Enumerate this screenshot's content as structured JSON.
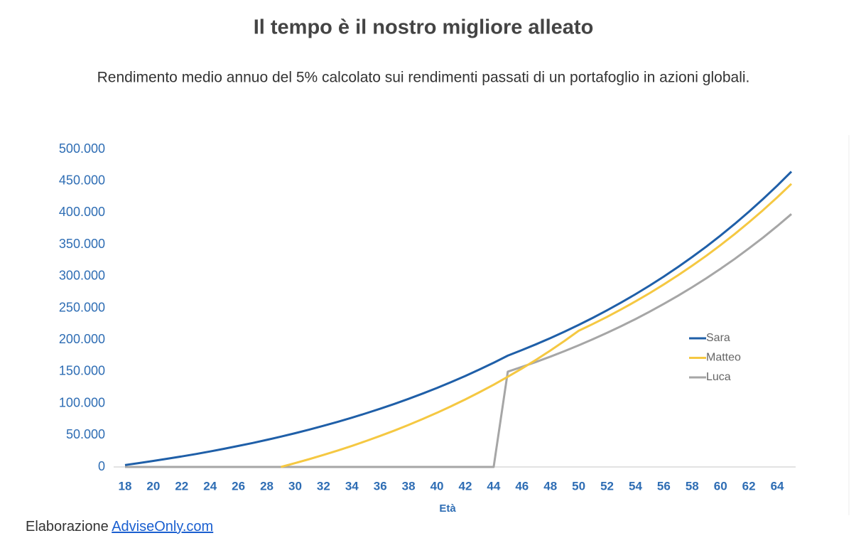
{
  "chart_data": {
    "type": "line",
    "title": "Il tempo è il nostro migliore alleato",
    "subtitle": "Rendimento medio annuo del 5% calcolato sui rendimenti passati di un portafoglio in azioni globali.",
    "x_label": "Età",
    "x": [
      18,
      19,
      20,
      21,
      22,
      23,
      24,
      25,
      26,
      27,
      28,
      29,
      30,
      31,
      32,
      33,
      34,
      35,
      36,
      37,
      38,
      39,
      40,
      41,
      42,
      43,
      44,
      45,
      46,
      47,
      48,
      49,
      50,
      51,
      52,
      53,
      54,
      55,
      56,
      57,
      58,
      59,
      60,
      61,
      62,
      63,
      64,
      65
    ],
    "xlim": [
      17.2,
      65.3
    ],
    "xticks": [
      18,
      20,
      22,
      24,
      26,
      28,
      30,
      32,
      34,
      36,
      38,
      40,
      42,
      44,
      46,
      48,
      50,
      52,
      54,
      56,
      58,
      60,
      62,
      64
    ],
    "ylim": [
      0,
      500000
    ],
    "yticks": [
      0,
      {
        "value": 50000,
        "label": "50.000"
      },
      {
        "value": 100000,
        "label": "100.000"
      },
      {
        "value": 150000,
        "label": "150.000"
      },
      {
        "value": 200000,
        "label": "200.000"
      },
      {
        "value": 250000,
        "label": "250.000"
      },
      {
        "value": 300000,
        "label": "300.000"
      },
      {
        "value": 350000,
        "label": "350.000"
      },
      {
        "value": 400000,
        "label": "400.000"
      },
      {
        "value": 450000,
        "label": "450.000"
      },
      {
        "value": 500000,
        "label": "500.000"
      }
    ],
    "legend": "right",
    "series": [
      {
        "name": "Sara",
        "color": "#1f5fa8",
        "values": [
          3000,
          6150,
          9458,
          12930,
          16577,
          20406,
          24426,
          28647,
          33080,
          37734,
          42620,
          47751,
          53139,
          58796,
          64736,
          70973,
          77521,
          84397,
          91617,
          99198,
          107158,
          115516,
          124292,
          133506,
          143181,
          153341,
          164007,
          175208,
          183968,
          193167,
          202825,
          212966,
          223614,
          234795,
          246535,
          258862,
          271805,
          285395,
          299665,
          314648,
          330380,
          346899,
          364244,
          382456,
          401579,
          421658,
          442741,
          464878
        ]
      },
      {
        "name": "Matteo",
        "color": "#f5c842",
        "values": [
          null,
          null,
          null,
          null,
          null,
          null,
          null,
          null,
          null,
          null,
          null,
          0,
          6000,
          12300,
          18915,
          25861,
          33154,
          40811,
          48852,
          57295,
          66160,
          75467,
          85241,
          95503,
          106278,
          117592,
          129472,
          141945,
          155042,
          168794,
          183234,
          198396,
          214316,
          225032,
          236284,
          248098,
          260503,
          273528,
          287204,
          301564,
          316642,
          332474,
          349098,
          366553,
          384881,
          404125,
          424331,
          445548
        ]
      },
      {
        "name": "Luca",
        "color": "#a6a6a6",
        "values": [
          0,
          0,
          0,
          0,
          0,
          0,
          0,
          0,
          0,
          0,
          0,
          0,
          0,
          0,
          0,
          0,
          0,
          0,
          0,
          0,
          0,
          0,
          0,
          0,
          0,
          0,
          0,
          150000,
          157500,
          165375,
          173644,
          182326,
          191442,
          201014,
          211065,
          221618,
          232699,
          244334,
          256551,
          269379,
          282848,
          296990,
          311840,
          327432,
          343804,
          360994,
          379044,
          397996
        ]
      }
    ]
  },
  "footer": {
    "text": "Elaborazione",
    "link": "AdviseOnly.com"
  }
}
